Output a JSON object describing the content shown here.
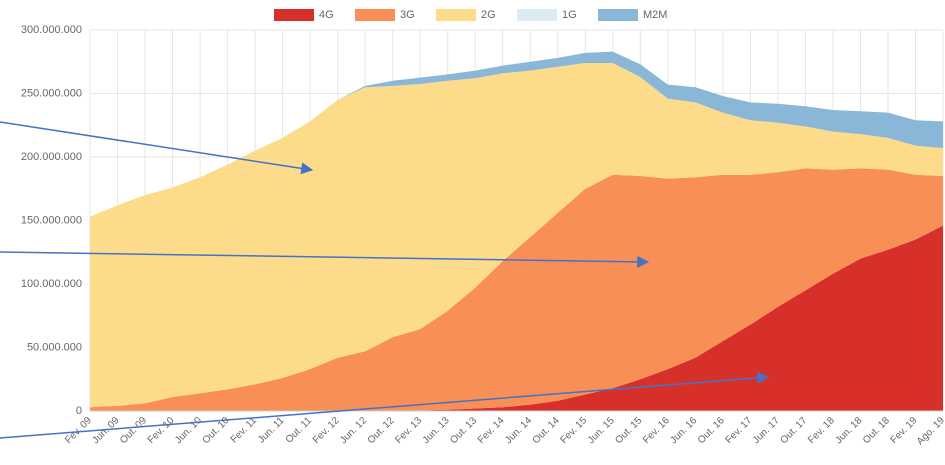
{
  "chart_data": {
    "type": "stacked_area",
    "categories": [
      "Fev. 09",
      "Jun. 09",
      "Out. 09",
      "Fev. 10",
      "Jun. 10",
      "Out. 10",
      "Fev. 11",
      "Jun. 11",
      "Out. 11",
      "Fev. 12",
      "Jun. 12",
      "Out. 12",
      "Fev. 13",
      "Jun. 13",
      "Out. 13",
      "Fev. 14",
      "Jun. 14",
      "Out. 14",
      "Fev. 15",
      "Jun. 15",
      "Out. 15",
      "Fev. 16",
      "Jun. 16",
      "Out. 16",
      "Fev. 17",
      "Jun. 17",
      "Out. 17",
      "Fev. 18",
      "Jun. 18",
      "Out. 18",
      "Fev. 19",
      "Ago. 19"
    ],
    "series": [
      {
        "name": "4G",
        "color": "#d7302a",
        "values": [
          0,
          0,
          0,
          0,
          0,
          0,
          0,
          0,
          0,
          0,
          0,
          0,
          500000,
          1000000,
          2000000,
          3000000,
          5000000,
          8000000,
          13000000,
          18000000,
          25000000,
          33000000,
          42000000,
          55000000,
          68000000,
          82000000,
          95000000,
          108000000,
          120000000,
          127000000,
          135000000,
          146000000
        ]
      },
      {
        "name": "3G",
        "color": "#f78f57",
        "values": [
          3000000,
          4000000,
          6000000,
          11000000,
          14000000,
          17000000,
          21000000,
          26000000,
          33000000,
          42000000,
          47000000,
          58000000,
          64000000,
          78000000,
          95000000,
          115000000,
          132000000,
          148000000,
          162000000,
          168000000,
          160000000,
          150000000,
          142000000,
          131000000,
          118000000,
          106000000,
          96000000,
          82000000,
          71000000,
          63000000,
          51000000,
          39000000
        ]
      },
      {
        "name": "2G",
        "color": "#fcdb8b",
        "values": [
          150000000,
          158000000,
          164000000,
          165000000,
          170000000,
          177000000,
          184000000,
          189000000,
          195000000,
          203000000,
          208000000,
          198000000,
          193000000,
          181000000,
          165000000,
          148000000,
          131000000,
          115000000,
          99000000,
          88000000,
          78000000,
          63000000,
          59000000,
          49000000,
          43000000,
          39000000,
          33000000,
          30000000,
          27000000,
          25000000,
          23000000,
          22000000
        ]
      },
      {
        "name": "1G",
        "color": "#dcecf5",
        "values": [
          0,
          0,
          0,
          0,
          0,
          0,
          0,
          0,
          0,
          0,
          0,
          0,
          0,
          0,
          0,
          0,
          0,
          0,
          0,
          0,
          0,
          0,
          0,
          0,
          0,
          0,
          0,
          0,
          0,
          0,
          0,
          0
        ]
      },
      {
        "name": "M2M",
        "color": "#8ab6d8",
        "values": [
          0,
          0,
          0,
          0,
          0,
          0,
          0,
          0,
          0,
          0,
          1000000,
          4000000,
          5000000,
          5000000,
          6000000,
          6000000,
          7000000,
          7000000,
          8000000,
          9000000,
          10000000,
          11000000,
          12000000,
          13000000,
          14000000,
          15000000,
          16000000,
          17000000,
          18000000,
          20000000,
          20000000,
          21000000
        ]
      }
    ],
    "ylim": [
      0,
      300000000
    ],
    "yticks": [
      0,
      {
        "value": 50000000,
        "label": "50.000.000"
      },
      {
        "value": 100000000,
        "label": "100.000.000"
      },
      {
        "value": 150000000,
        "label": "150.000.000"
      },
      {
        "value": 200000000,
        "label": "200.000.000"
      },
      {
        "value": 250000000,
        "label": "250.000.000"
      },
      {
        "value": 300000000,
        "label": "300.000.000"
      }
    ],
    "grid": true,
    "legend": "top"
  }
}
